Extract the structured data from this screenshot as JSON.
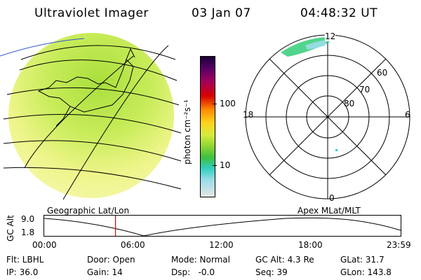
{
  "header": {
    "title": "Ultraviolet Imager",
    "date": "03 Jan 07",
    "time": "04:48:32 UT"
  },
  "colorbar": {
    "unit_label": "photon cm⁻²s⁻¹",
    "ticks": [
      "100",
      "10"
    ]
  },
  "polar": {
    "mlt_labels": {
      "top": "12",
      "left": "18",
      "right": "6",
      "bottom": "0"
    },
    "lat_labels": [
      "60",
      "70",
      "80"
    ]
  },
  "timeline": {
    "left_label": "Geographic Lat/Lon",
    "right_label": "Apex MLat/MLT",
    "y_title": "GC Alt",
    "y_ticks": [
      "9.0",
      "1.8"
    ],
    "x_ticks": [
      "00:00",
      "06:00",
      "12:00",
      "18:00",
      "23:59"
    ],
    "current_time_fraction": 0.2,
    "curve_color": "#000000",
    "marker_color": "#e00000"
  },
  "info": {
    "flt": "Flt: LBHL",
    "door": "Door: Open",
    "mode": "Mode: Normal",
    "gc_alt": "GC Alt: 4.3 Re",
    "glat": "GLat: 31.7",
    "ip": "IP: 36.0",
    "gain": "Gain: 14",
    "dsp": "Dsp:   -0.0",
    "seq": "Seq: 39",
    "glon": "GLon: 143.8"
  },
  "colors": {
    "disk_green": "#b7e64a",
    "disk_yellow": "#eef58a",
    "cb_top": "#1a0033",
    "cb_bottom": "#e6e6e6"
  }
}
